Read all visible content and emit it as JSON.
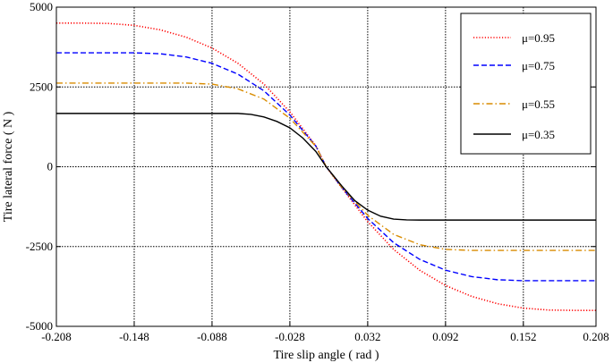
{
  "chart_data": {
    "type": "line",
    "title": "",
    "xlabel": "Tire slip angle ( rad )",
    "ylabel": "Tire lateral force ( N )",
    "xlim": [
      -0.208,
      0.208
    ],
    "ylim": [
      -5000,
      5000
    ],
    "xticks": [
      -0.208,
      -0.148,
      -0.088,
      -0.028,
      0.032,
      0.092,
      0.152,
      0.208
    ],
    "xtick_labels": [
      "-0.208",
      "-0.148",
      "-0.088",
      "-0.028",
      "0.032",
      "0.092",
      "0.152",
      "0.208"
    ],
    "yticks": [
      5000,
      2500,
      0,
      -2500,
      -5000
    ],
    "ytick_labels": [
      "5000",
      "2500",
      "0",
      "-2500",
      "-5000"
    ],
    "grid": true,
    "legend_position": "top-right",
    "series": [
      {
        "name": "μ=0.95",
        "color": "#ff0000",
        "dash": "dotted",
        "x": [
          -0.208,
          -0.188,
          -0.168,
          -0.148,
          -0.128,
          -0.108,
          -0.088,
          -0.068,
          -0.048,
          -0.028,
          -0.008,
          0.0,
          0.012,
          0.032,
          0.052,
          0.072,
          0.092,
          0.112,
          0.132,
          0.152,
          0.172,
          0.192,
          0.208
        ],
        "y": [
          4500,
          4500,
          4490,
          4430,
          4290,
          4060,
          3720,
          3240,
          2590,
          1720,
          660,
          0,
          -660,
          -1720,
          -2590,
          -3240,
          -3720,
          -4060,
          -4290,
          -4430,
          -4490,
          -4500,
          -4500
        ]
      },
      {
        "name": "μ=0.75",
        "color": "#0000ff",
        "dash": "dashed",
        "x": [
          -0.208,
          -0.188,
          -0.168,
          -0.148,
          -0.128,
          -0.108,
          -0.088,
          -0.068,
          -0.048,
          -0.028,
          -0.008,
          0.0,
          0.012,
          0.032,
          0.052,
          0.072,
          0.092,
          0.112,
          0.132,
          0.152,
          0.172,
          0.192,
          0.208
        ],
        "y": [
          3570,
          3570,
          3570,
          3570,
          3540,
          3440,
          3240,
          2900,
          2380,
          1620,
          650,
          0,
          -650,
          -1620,
          -2380,
          -2900,
          -3240,
          -3440,
          -3540,
          -3570,
          -3570,
          -3570,
          -3570
        ]
      },
      {
        "name": "μ=0.55",
        "color": "#d98c00",
        "dash": "dashdot",
        "x": [
          -0.208,
          -0.188,
          -0.168,
          -0.148,
          -0.128,
          -0.108,
          -0.088,
          -0.068,
          -0.048,
          -0.028,
          -0.008,
          0.0,
          0.012,
          0.032,
          0.052,
          0.072,
          0.092,
          0.112,
          0.132,
          0.152,
          0.172,
          0.192,
          0.208
        ],
        "y": [
          2620,
          2620,
          2620,
          2620,
          2620,
          2620,
          2590,
          2440,
          2120,
          1520,
          640,
          0,
          -640,
          -1520,
          -2120,
          -2440,
          -2590,
          -2620,
          -2620,
          -2620,
          -2620,
          -2620,
          -2620
        ]
      },
      {
        "name": "μ=0.35",
        "color": "#000000",
        "dash": "solid",
        "x": [
          -0.208,
          -0.188,
          -0.168,
          -0.148,
          -0.128,
          -0.108,
          -0.088,
          -0.068,
          -0.058,
          -0.048,
          -0.038,
          -0.028,
          -0.018,
          -0.008,
          0.0,
          0.012,
          0.022,
          0.032,
          0.042,
          0.052,
          0.062,
          0.072,
          0.092,
          0.112,
          0.132,
          0.152,
          0.172,
          0.192,
          0.208
        ],
        "y": [
          1670,
          1670,
          1670,
          1670,
          1670,
          1670,
          1670,
          1670,
          1640,
          1560,
          1420,
          1220,
          900,
          480,
          0,
          -600,
          -1060,
          -1360,
          -1550,
          -1640,
          -1665,
          -1670,
          -1670,
          -1670,
          -1670,
          -1670,
          -1670,
          -1670,
          -1670
        ]
      }
    ]
  }
}
